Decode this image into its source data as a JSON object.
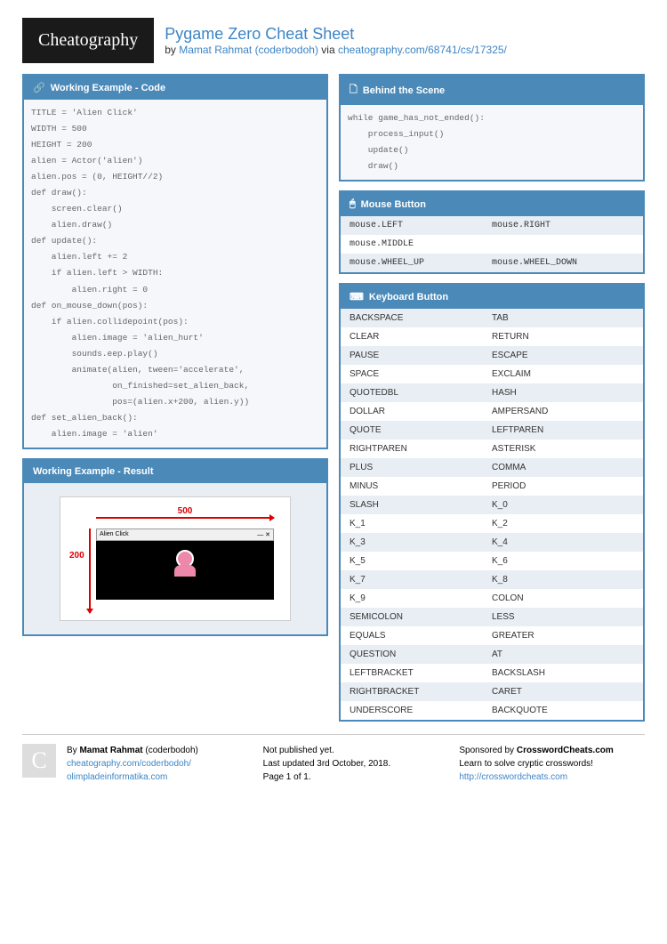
{
  "logo": "Cheatography",
  "title": "Pygame Zero Cheat Sheet",
  "by": "by ",
  "author": "Mamat Rahmat (coderbodoh)",
  "via": " via ",
  "url": "cheatography.com/68741/cs/17325/",
  "blocks": {
    "code": {
      "title": "Working Example - Code",
      "content": "TITLE = 'Alien Click'\nWIDTH = 500\nHEIGHT = 200\nalien = Actor('alien')\nalien.pos = (0, HEIGHT//2)\ndef draw():\n    screen.clear()\n    alien.draw()\ndef update():\n    alien.left += 2\n    if alien.left > WIDTH:\n        alien.right = 0\ndef on_mouse_down(pos):\n    if alien.collidepoint(pos):\n        alien.image = 'alien_hurt'\n        sounds.eep.play()\n        animate(alien, tween='accelerate',\n                on_finished=set_alien_back,\n                pos=(alien.x+200, alien.y))\ndef set_alien_back():\n    alien.image = 'alien'"
    },
    "result": {
      "title": "Working Example - Result",
      "dim_w": "500",
      "dim_h": "200",
      "wintitle": "Alien Click"
    },
    "scene": {
      "title": "Behind the Scene",
      "content": "while game_has_not_ended():\n    process_input()\n    update()\n    draw()"
    },
    "mouse": {
      "title": "Mouse Button",
      "rows": [
        [
          "mouse.LEFT",
          "mouse.RIGHT"
        ],
        [
          "mouse.MIDDLE",
          ""
        ],
        [
          "mouse.WHEEL_UP",
          "mouse.WHEEL_DOWN"
        ]
      ]
    },
    "keyboard": {
      "title": "Keyboard Button",
      "rows": [
        [
          "BACKSPACE",
          "TAB"
        ],
        [
          "CLEAR",
          "RETURN"
        ],
        [
          "PAUSE",
          "ESCAPE"
        ],
        [
          "SPACE",
          "EXCLAIM"
        ],
        [
          "QUOTEDBL",
          "HASH"
        ],
        [
          "DOLLAR",
          "AMPERSAND"
        ],
        [
          "QUOTE",
          "LEFTPAREN"
        ],
        [
          "RIGHTPAREN",
          "ASTERISK"
        ],
        [
          "PLUS",
          "COMMA"
        ],
        [
          "MINUS",
          "PERIOD"
        ],
        [
          "SLASH",
          "K_0"
        ],
        [
          "K_1",
          "K_2"
        ],
        [
          "K_3",
          "K_4"
        ],
        [
          "K_5",
          "K_6"
        ],
        [
          "K_7",
          "K_8"
        ],
        [
          "K_9",
          "COLON"
        ],
        [
          "SEMICOLON",
          "LESS"
        ],
        [
          "EQUALS",
          "GREATER"
        ],
        [
          "QUESTION",
          "AT"
        ],
        [
          "LEFTBRACKET",
          "BACKSLASH"
        ],
        [
          "RIGHTBRACKET",
          "CARET"
        ],
        [
          "UNDERSCORE",
          "BACKQUOTE"
        ]
      ]
    }
  },
  "footer": {
    "by_label": "By ",
    "author": "Mamat Rahmat",
    "handle": " (coderbodoh)",
    "link1": "cheatography.com/coderbodoh/",
    "link2": "olimpladeinformatika.com",
    "pub": "Not published yet.",
    "updated": "Last updated 3rd October, 2018.",
    "page": "Page 1 of 1.",
    "sponsor_label": "Sponsored by ",
    "sponsor": "CrosswordCheats.com",
    "sponsor_tag": "Learn to solve cryptic crosswords!",
    "sponsor_url": "http://crosswordcheats.com"
  },
  "colors": {
    "brand": "#4a89b8",
    "link": "#3d85c6",
    "logo_bg": "#1a1a1a",
    "red": "#d00"
  }
}
